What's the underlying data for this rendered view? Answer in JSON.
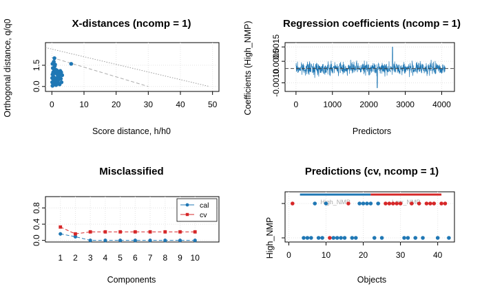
{
  "chart_data": [
    {
      "type": "scatter",
      "title": "X-distances (ncomp = 1)",
      "xlabel": "Score distance, h/h0",
      "ylabel": "Orthogonal distance, q/q0",
      "xlim": [
        -2,
        52
      ],
      "ylim": [
        -0.35,
        3.1
      ],
      "xticks": [
        "0",
        "10",
        "20",
        "30",
        "40",
        "50"
      ],
      "yticks": [
        "0.0",
        "1.5"
      ],
      "grid": true,
      "color": "#1f77b4",
      "points": [
        [
          0.2,
          0.05
        ],
        [
          0.4,
          0.15
        ],
        [
          0.1,
          0.3
        ],
        [
          0.6,
          0.4
        ],
        [
          0.3,
          0.55
        ],
        [
          0.8,
          0.2
        ],
        [
          1.0,
          0.35
        ],
        [
          1.2,
          0.5
        ],
        [
          0.5,
          0.7
        ],
        [
          0.2,
          0.85
        ],
        [
          0.9,
          0.95
        ],
        [
          1.5,
          0.6
        ],
        [
          1.8,
          0.3
        ],
        [
          2.0,
          0.45
        ],
        [
          2.2,
          0.7
        ],
        [
          2.5,
          0.9
        ],
        [
          2.8,
          0.55
        ],
        [
          3.0,
          0.3
        ],
        [
          0.4,
          1.0
        ],
        [
          0.7,
          1.1
        ],
        [
          1.1,
          1.2
        ],
        [
          0.3,
          1.3
        ],
        [
          0.9,
          1.45
        ],
        [
          1.5,
          1.15
        ],
        [
          2.0,
          1.0
        ],
        [
          2.6,
          1.1
        ],
        [
          0.2,
          1.6
        ],
        [
          0.6,
          1.75
        ],
        [
          1.0,
          1.55
        ],
        [
          0.8,
          2.0
        ],
        [
          1.3,
          0.1
        ],
        [
          2.4,
          0.15
        ],
        [
          3.2,
          0.8
        ],
        [
          1.7,
          0.85
        ],
        [
          0.1,
          0.6
        ],
        [
          2.9,
          1.0
        ],
        [
          6.0,
          1.6
        ]
      ],
      "limits": [
        {
          "style": "dashed",
          "from": [
            0,
            2.05
          ],
          "to": [
            30,
            0
          ]
        },
        {
          "style": "dotted",
          "from": [
            -2,
            2.75
          ],
          "to": [
            49,
            0
          ]
        }
      ]
    },
    {
      "type": "line",
      "title": "Regression coefficients (ncomp = 1)",
      "xlabel": "Predictors",
      "ylabel": "Coefficients (High_NMP)",
      "xlim": [
        -300,
        4350
      ],
      "ylim": [
        -0.0016,
        0.0018
      ],
      "xticks": [
        "0",
        "1000",
        "2000",
        "3000",
        "4000"
      ],
      "yticks": [
        "-0.0010",
        "0.0005",
        "0.0015"
      ],
      "grid": true,
      "n_predictors": 4096,
      "mean": 0.0,
      "spread": 0.0004,
      "max": 0.0015,
      "min": -0.00135,
      "zero_line": 0,
      "color": "#1f77b4"
    },
    {
      "type": "line",
      "title": "Misclassified",
      "xlabel": "Components",
      "ylabel": "",
      "categories": [
        "1",
        "2",
        "3",
        "4",
        "5",
        "6",
        "7",
        "8",
        "9",
        "10"
      ],
      "xlim": [
        0,
        11.6
      ],
      "ylim": [
        -0.04,
        1.08
      ],
      "yticks": [
        "0.0",
        "0.4",
        "0.8"
      ],
      "grid": true,
      "legend_position": "top-right",
      "series": [
        {
          "name": "cal",
          "color": "#1f77b4",
          "values": [
            0.16,
            0.09,
            0.0,
            0.0,
            0.0,
            0.0,
            0.0,
            0.0,
            0.0,
            0.0
          ]
        },
        {
          "name": "cv",
          "color": "#d62728",
          "values": [
            0.33,
            0.16,
            0.21,
            0.21,
            0.21,
            0.21,
            0.21,
            0.21,
            0.21,
            0.21
          ]
        }
      ]
    },
    {
      "type": "scatter",
      "title": "Predictions (cv, ncomp = 1)",
      "xlabel": "Objects",
      "ylabel": "High_NMP",
      "xlim": [
        -1,
        44.5
      ],
      "xticks": [
        "0",
        "10",
        "20",
        "30",
        "40"
      ],
      "grid": true,
      "class_labels": [
        "High_NMP",
        "Low_NMP"
      ],
      "class_ranges": [
        [
          3,
          22
        ],
        [
          22,
          41
        ]
      ],
      "correct_color": "#1f77b4",
      "wrong_color": "#d62728",
      "top_points": [
        {
          "x": 1,
          "wrong": true
        },
        {
          "x": 7,
          "wrong": false
        },
        {
          "x": 10,
          "wrong": false
        },
        {
          "x": 16,
          "wrong": true
        },
        {
          "x": 19,
          "wrong": false
        },
        {
          "x": 20,
          "wrong": false
        },
        {
          "x": 21,
          "wrong": false
        },
        {
          "x": 22,
          "wrong": false
        },
        {
          "x": 24,
          "wrong": false
        },
        {
          "x": 26,
          "wrong": true
        },
        {
          "x": 27,
          "wrong": true
        },
        {
          "x": 28,
          "wrong": true
        },
        {
          "x": 29,
          "wrong": true
        },
        {
          "x": 30,
          "wrong": true
        },
        {
          "x": 33,
          "wrong": true
        },
        {
          "x": 35,
          "wrong": true
        },
        {
          "x": 37,
          "wrong": true
        },
        {
          "x": 38,
          "wrong": true
        },
        {
          "x": 39,
          "wrong": true
        },
        {
          "x": 41,
          "wrong": true
        },
        {
          "x": 42,
          "wrong": true
        }
      ],
      "bottom_points": [
        {
          "x": 4,
          "wrong": false
        },
        {
          "x": 5,
          "wrong": false
        },
        {
          "x": 6,
          "wrong": false
        },
        {
          "x": 8,
          "wrong": false
        },
        {
          "x": 9,
          "wrong": false
        },
        {
          "x": 11,
          "wrong": true
        },
        {
          "x": 12,
          "wrong": false
        },
        {
          "x": 13,
          "wrong": false
        },
        {
          "x": 14,
          "wrong": false
        },
        {
          "x": 15,
          "wrong": false
        },
        {
          "x": 17,
          "wrong": false
        },
        {
          "x": 18,
          "wrong": false
        },
        {
          "x": 23,
          "wrong": false
        },
        {
          "x": 25,
          "wrong": false
        },
        {
          "x": 31,
          "wrong": false
        },
        {
          "x": 32,
          "wrong": false
        },
        {
          "x": 34,
          "wrong": false
        },
        {
          "x": 36,
          "wrong": false
        },
        {
          "x": 40,
          "wrong": false
        },
        {
          "x": 43,
          "wrong": false
        }
      ]
    }
  ]
}
